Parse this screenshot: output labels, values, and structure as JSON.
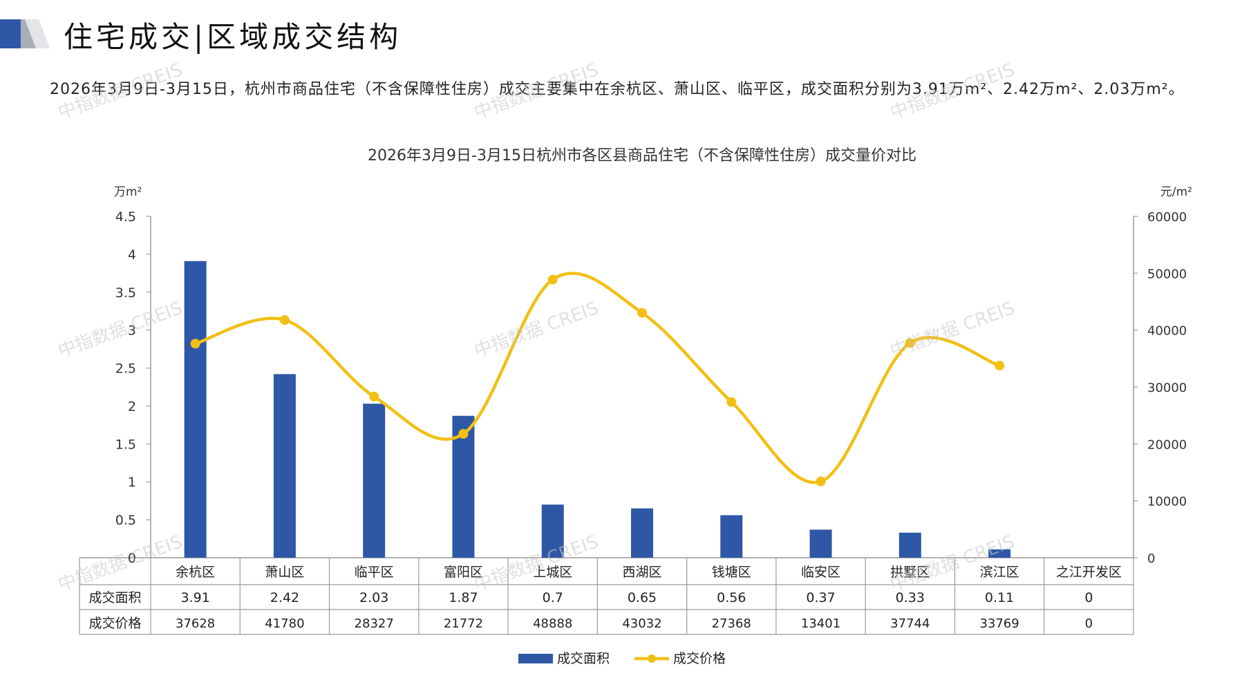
{
  "header": {
    "title": "住宅成交|区域成交结构"
  },
  "summary": {
    "text": "2026年3月9日-3月15日，杭州市商品住宅（不含保障性住房）成交主要集中在余杭区、萧山区、临平区，成交面积分别为3.91万m²、2.42万m²、2.03万m²。"
  },
  "watermark": {
    "text": "中指数据 CREIS"
  },
  "colors": {
    "bar": "#2E57A6",
    "line": "#F2C014",
    "axis": "#999999",
    "grid_table": "#999999"
  },
  "chart_data": {
    "type": "bar",
    "title": "2026年3月9日-3月15日杭州市各区县商品住宅（不含保障性住房）成交量价对比",
    "categories": [
      "余杭区",
      "萧山区",
      "临平区",
      "富阳区",
      "上城区",
      "西湖区",
      "钱塘区",
      "临安区",
      "拱墅区",
      "滨江区",
      "之江开发区"
    ],
    "y_left": {
      "unit": "万m²",
      "ylim": [
        0,
        4.5
      ],
      "ticks": [
        "0",
        "0.5",
        "1",
        "1.5",
        "2",
        "2.5",
        "3",
        "3.5",
        "4",
        "4.5"
      ]
    },
    "y_right": {
      "unit": "元/m²",
      "ylim": [
        0,
        60000
      ],
      "ticks": [
        "0",
        "10000",
        "20000",
        "30000",
        "40000",
        "50000",
        "60000"
      ]
    },
    "series": [
      {
        "name": "成交面积",
        "type": "bar",
        "axis": "left",
        "values": [
          3.91,
          2.42,
          2.03,
          1.87,
          0.7,
          0.65,
          0.56,
          0.37,
          0.33,
          0.11,
          0
        ],
        "labels": [
          "3.91",
          "2.42",
          "2.03",
          "1.87",
          "0.7",
          "0.65",
          "0.56",
          "0.37",
          "0.33",
          "0.11",
          "0"
        ]
      },
      {
        "name": "成交价格",
        "type": "line",
        "smooth": true,
        "axis": "right",
        "values": [
          37628,
          41780,
          28327,
          21772,
          48888,
          43032,
          27368,
          13401,
          37744,
          33769,
          0
        ],
        "labels": [
          "37628",
          "41780",
          "28327",
          "21772",
          "48888",
          "43032",
          "27368",
          "13401",
          "37744",
          "33769",
          "0"
        ]
      }
    ],
    "data_table": true,
    "legend": "bottom",
    "grid": false
  }
}
